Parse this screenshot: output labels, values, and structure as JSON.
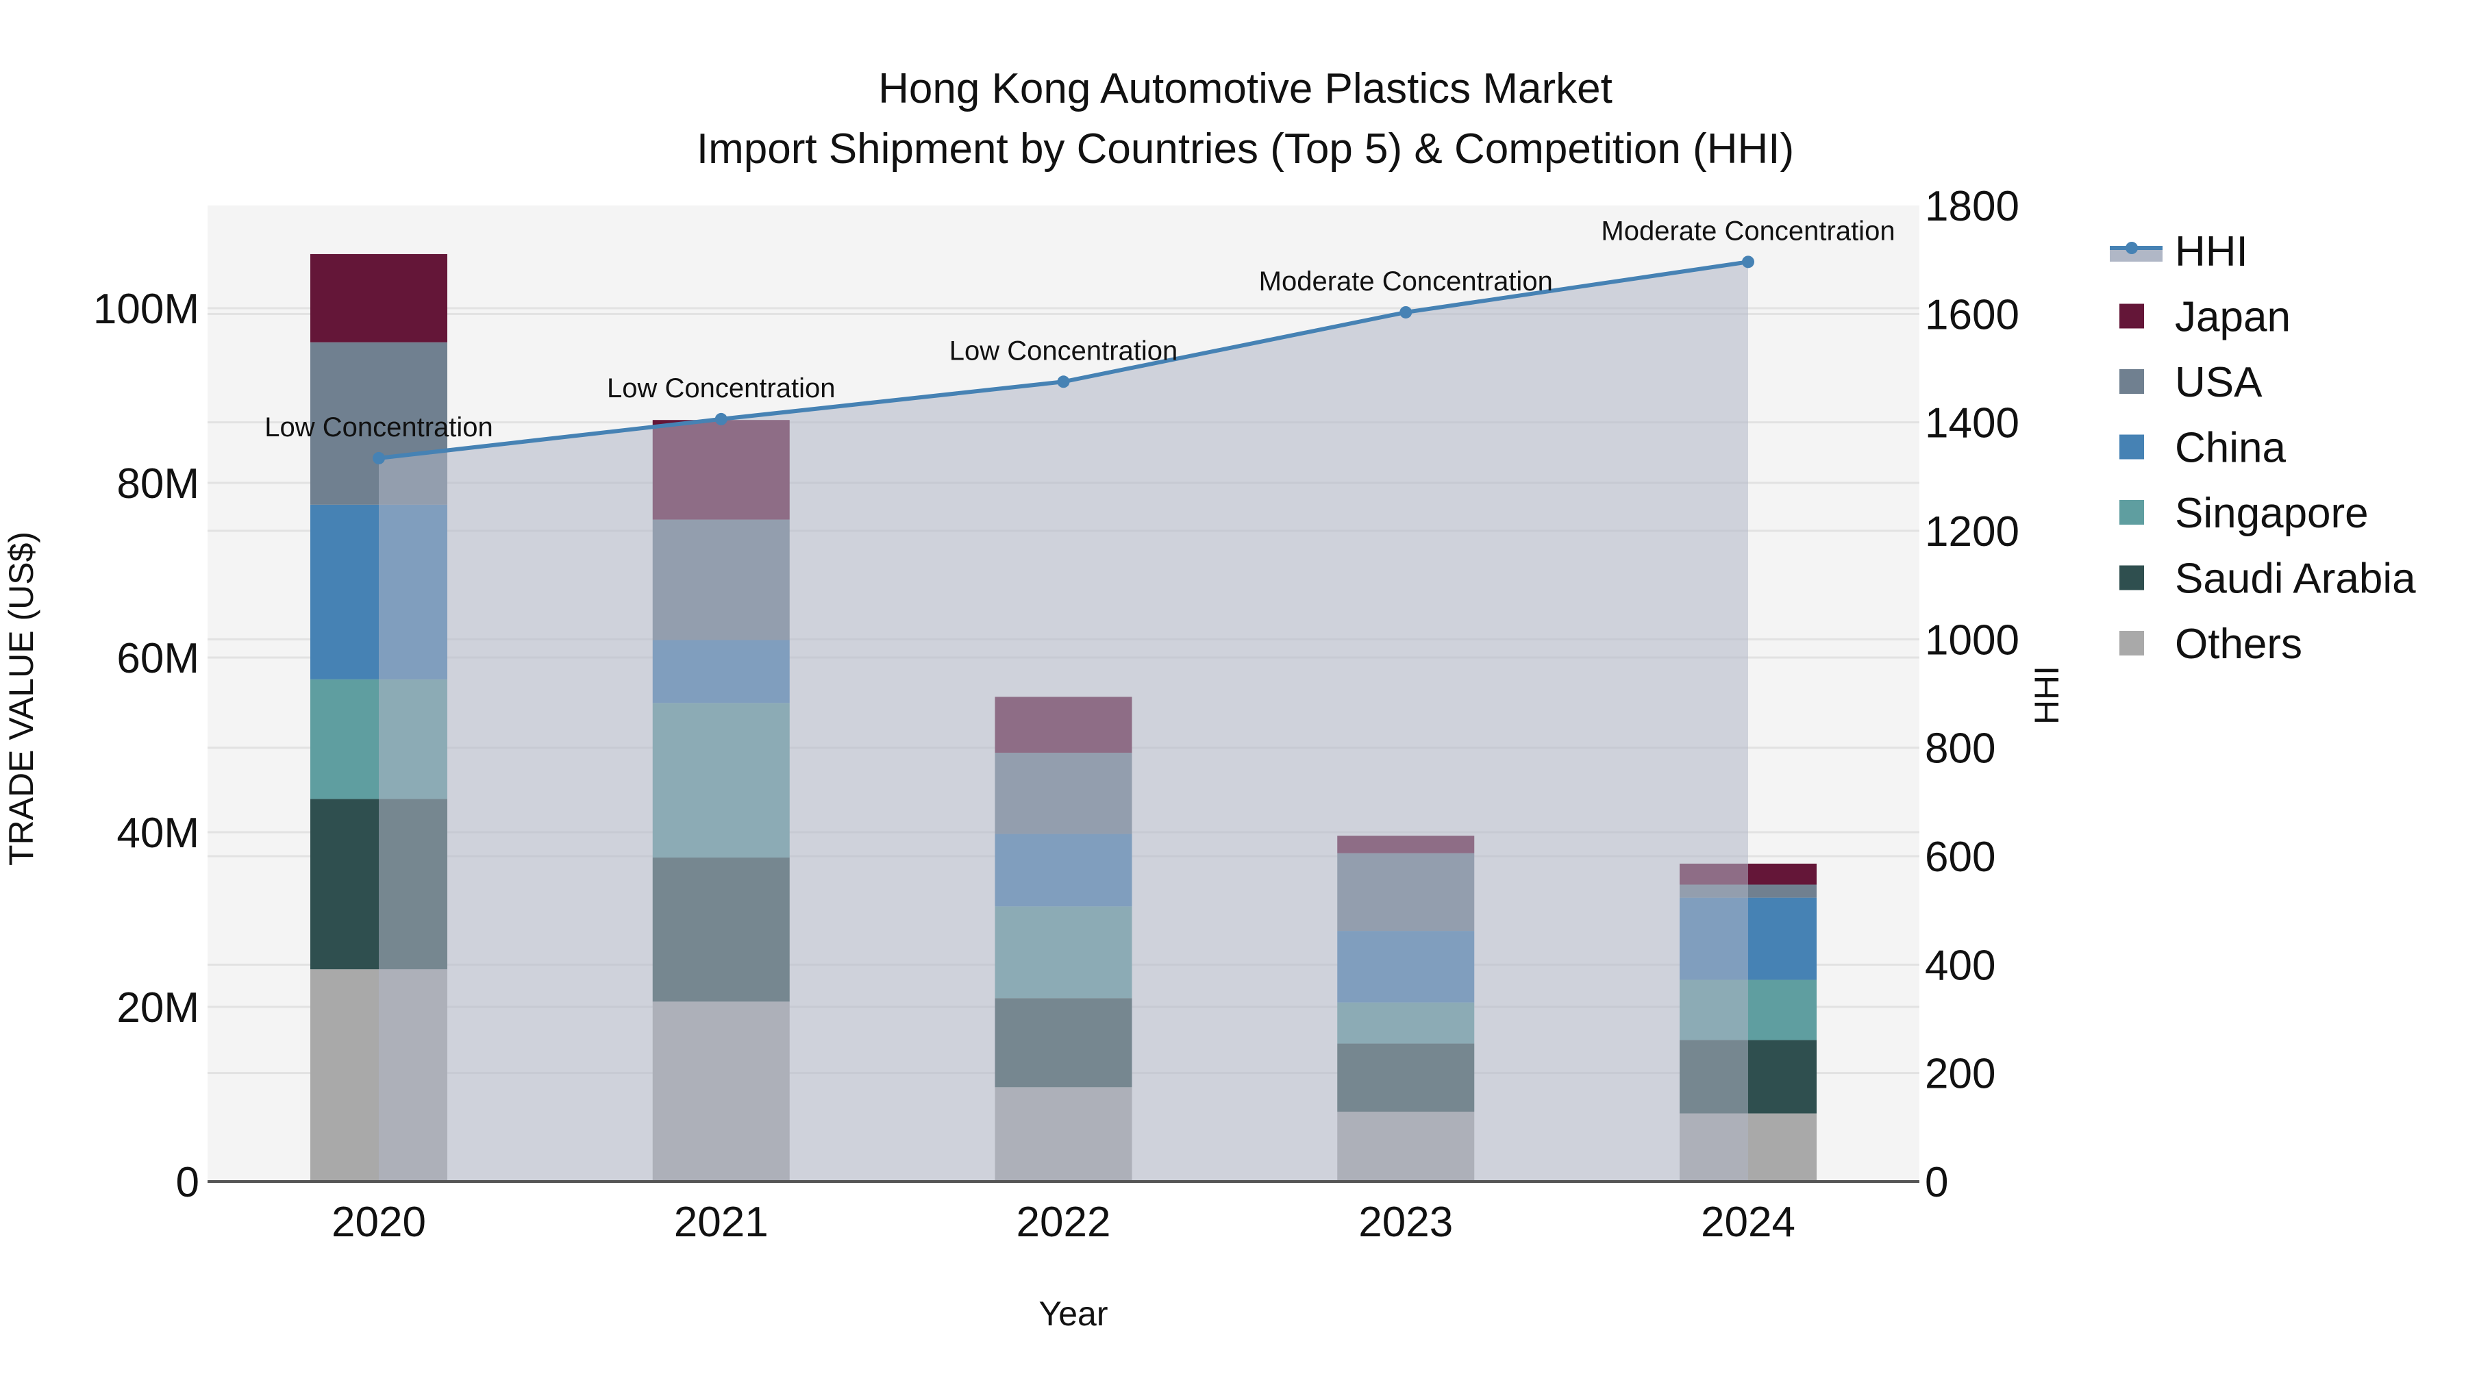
{
  "chart_data": {
    "type": "bar",
    "stacked": true,
    "title": "Hong Kong Automotive Plastics Market",
    "subtitle": "Import Shipment by Countries (Top 5) & Competition (HHI)",
    "xlabel": "Year",
    "ylabel": "TRADE VALUE (US$)",
    "y2label": "HHI",
    "categories": [
      "2020",
      "2021",
      "2022",
      "2023",
      "2024"
    ],
    "ylim": [
      0,
      112000000
    ],
    "y2lim": [
      0,
      1800
    ],
    "yticks": [
      {
        "value": 0,
        "label": "0"
      },
      {
        "value": 20000000,
        "label": "20M"
      },
      {
        "value": 40000000,
        "label": "40M"
      },
      {
        "value": 60000000,
        "label": "60M"
      },
      {
        "value": 80000000,
        "label": "80M"
      },
      {
        "value": 100000000,
        "label": "100M"
      }
    ],
    "y2ticks": [
      0,
      200,
      400,
      600,
      800,
      1000,
      1200,
      1400,
      1600,
      1800
    ],
    "series": [
      {
        "name": "Others",
        "color": "#A9A9A9",
        "values": [
          24.3,
          20.6,
          10.8,
          8.0,
          7.8
        ]
      },
      {
        "name": "Saudi Arabia",
        "color": "#2F4F4F",
        "values": [
          19.5,
          16.5,
          10.2,
          7.8,
          8.4
        ]
      },
      {
        "name": "Singapore",
        "color": "#5F9EA0",
        "values": [
          13.7,
          17.7,
          10.5,
          4.7,
          6.9
        ]
      },
      {
        "name": "China",
        "color": "#4682B4",
        "values": [
          20.0,
          7.2,
          8.3,
          8.2,
          9.4
        ]
      },
      {
        "name": "USA",
        "color": "#708090",
        "values": [
          18.6,
          13.8,
          9.3,
          8.9,
          1.5
        ]
      },
      {
        "name": "Japan",
        "color": "#641638",
        "values": [
          10.1,
          11.4,
          6.4,
          2.0,
          2.4
        ]
      }
    ],
    "value_unit": "millions US$",
    "line_series": {
      "name": "HHI",
      "axis": "y2",
      "color": "#4682B4",
      "fill": "#B0B7C6",
      "values": [
        1334,
        1406,
        1475,
        1603,
        1696
      ],
      "annotations": [
        "Low Concentration",
        "Low Concentration",
        "Low Concentration",
        "Moderate Concentration",
        "Moderate Concentration"
      ]
    },
    "legend": {
      "position": "right",
      "items": [
        "HHI",
        "Japan",
        "USA",
        "China",
        "Singapore",
        "Saudi Arabia",
        "Others"
      ]
    },
    "grid": true,
    "plot_bg": "#F4F4F4"
  }
}
